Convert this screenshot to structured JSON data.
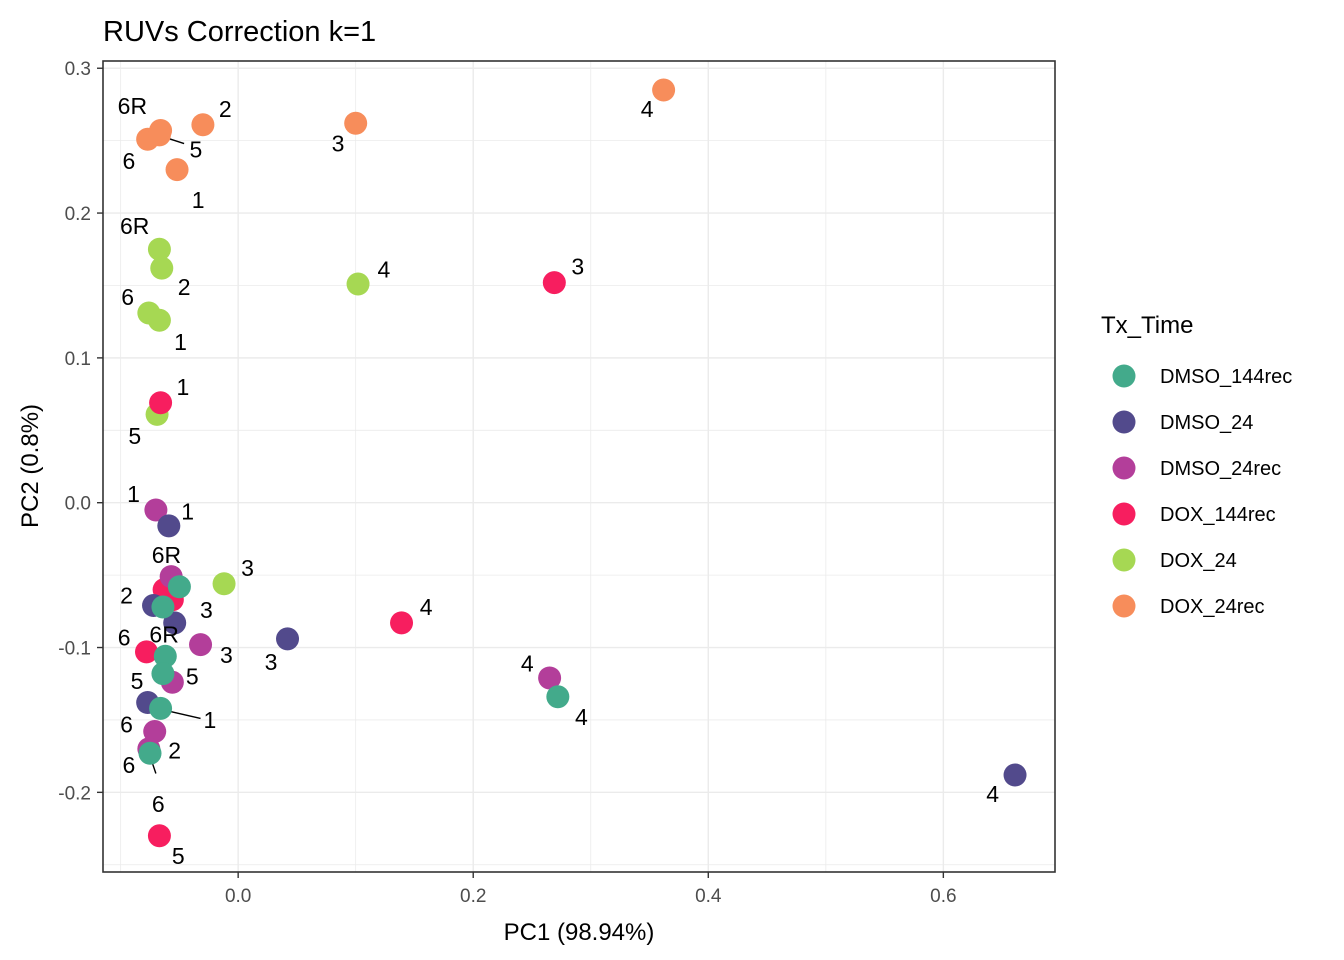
{
  "chart_data": {
    "type": "scatter",
    "title": "RUVs Correction k=1",
    "xlabel": "PC1 (98.94%)",
    "ylabel": "PC2 (0.8%)",
    "xlim": [
      -0.115,
      0.695
    ],
    "ylim": [
      -0.255,
      0.305
    ],
    "x_ticks": [
      0.0,
      0.2,
      0.4,
      0.6
    ],
    "x_tick_labels": [
      "0.0",
      "0.2",
      "0.4",
      "0.6"
    ],
    "y_ticks": [
      -0.2,
      -0.1,
      0.0,
      0.1,
      0.2,
      0.3
    ],
    "y_tick_labels": [
      "-0.2",
      "-0.1",
      "0.0",
      "0.1",
      "0.2",
      "0.3"
    ],
    "grid": true,
    "legend": {
      "title": "Tx_Time",
      "placement": "right",
      "entries": [
        {
          "name": "DMSO_144rec",
          "color": "#43AA8B"
        },
        {
          "name": "DMSO_24",
          "color": "#524A8C"
        },
        {
          "name": "DMSO_24rec",
          "color": "#B33E9A"
        },
        {
          "name": "DOX_144rec",
          "color": "#F71E5F"
        },
        {
          "name": "DOX_24",
          "color": "#A6D853"
        },
        {
          "name": "DOX_24rec",
          "color": "#F78D5B"
        }
      ]
    },
    "series": [
      {
        "name": "DOX_24rec",
        "points": [
          {
            "x": 0.362,
            "y": 0.285,
            "label": "4",
            "lx": 0.348,
            "ly": 0.272
          },
          {
            "x": 0.1,
            "y": 0.262,
            "label": "3",
            "lx": 0.085,
            "ly": 0.248
          },
          {
            "x": -0.03,
            "y": 0.261,
            "label": "2",
            "lx": -0.011,
            "ly": 0.272
          },
          {
            "x": -0.066,
            "y": 0.257,
            "label": "6R",
            "lx": -0.09,
            "ly": 0.274
          },
          {
            "x": -0.077,
            "y": 0.251,
            "label": "6",
            "lx": -0.093,
            "ly": 0.236
          },
          {
            "x": -0.067,
            "y": 0.254,
            "label": "5",
            "lx": -0.036,
            "ly": 0.244
          },
          {
            "x": -0.052,
            "y": 0.23,
            "label": "1",
            "lx": -0.034,
            "ly": 0.209
          }
        ]
      },
      {
        "name": "DOX_24",
        "points": [
          {
            "x": 0.102,
            "y": 0.151,
            "label": "4",
            "lx": 0.124,
            "ly": 0.161
          },
          {
            "x": -0.067,
            "y": 0.175,
            "label": "6R",
            "lx": -0.088,
            "ly": 0.191
          },
          {
            "x": -0.065,
            "y": 0.162,
            "label": "2",
            "lx": -0.046,
            "ly": 0.149
          },
          {
            "x": -0.076,
            "y": 0.131,
            "label": "6",
            "lx": -0.094,
            "ly": 0.142
          },
          {
            "x": -0.067,
            "y": 0.126,
            "label": "1",
            "lx": -0.049,
            "ly": 0.111
          },
          {
            "x": -0.069,
            "y": 0.061,
            "label": "5",
            "lx": -0.088,
            "ly": 0.046
          },
          {
            "x": -0.012,
            "y": -0.056,
            "label": "3",
            "lx": 0.008,
            "ly": -0.045
          }
        ]
      },
      {
        "name": "DOX_144rec",
        "points": [
          {
            "x": 0.269,
            "y": 0.152,
            "label": "3",
            "lx": 0.289,
            "ly": 0.163
          },
          {
            "x": -0.066,
            "y": 0.069,
            "label": "1",
            "lx": -0.047,
            "ly": 0.08
          },
          {
            "x": 0.139,
            "y": -0.083,
            "label": "4",
            "lx": 0.16,
            "ly": -0.072
          },
          {
            "x": -0.063,
            "y": -0.06,
            "label": "",
            "lx": 0,
            "ly": 0
          },
          {
            "x": -0.056,
            "y": -0.067,
            "label": "3",
            "lx": -0.027,
            "ly": -0.074
          },
          {
            "x": -0.078,
            "y": -0.103,
            "label": "6",
            "lx": -0.097,
            "ly": -0.093
          },
          {
            "x": -0.067,
            "y": -0.23,
            "label": "5",
            "lx": -0.051,
            "ly": -0.244
          }
        ]
      },
      {
        "name": "DMSO_24rec",
        "points": [
          {
            "x": -0.07,
            "y": -0.005,
            "label": "1",
            "lx": -0.089,
            "ly": 0.006
          },
          {
            "x": -0.057,
            "y": -0.051,
            "label": "6R",
            "lx": -0.061,
            "ly": -0.036
          },
          {
            "x": -0.032,
            "y": -0.098,
            "label": "3",
            "lx": -0.01,
            "ly": -0.105
          },
          {
            "x": -0.056,
            "y": -0.124,
            "label": "5",
            "lx": -0.039,
            "ly": -0.12
          },
          {
            "x": 0.265,
            "y": -0.121,
            "label": "4",
            "lx": 0.246,
            "ly": -0.111
          },
          {
            "x": -0.071,
            "y": -0.158,
            "label": "6",
            "lx": -0.095,
            "ly": -0.153
          },
          {
            "x": -0.076,
            "y": -0.17,
            "label": "2",
            "lx": -0.054,
            "ly": -0.171
          }
        ]
      },
      {
        "name": "DMSO_24",
        "points": [
          {
            "x": -0.059,
            "y": -0.016,
            "label": "1",
            "lx": -0.043,
            "ly": -0.006
          },
          {
            "x": -0.072,
            "y": -0.071,
            "label": "2",
            "lx": -0.095,
            "ly": -0.064
          },
          {
            "x": -0.054,
            "y": -0.083,
            "label": "",
            "lx": 0,
            "ly": 0
          },
          {
            "x": 0.042,
            "y": -0.094,
            "label": "3",
            "lx": 0.028,
            "ly": -0.11
          },
          {
            "x": -0.077,
            "y": -0.138,
            "label": "",
            "lx": 0,
            "ly": 0
          },
          {
            "x": 0.661,
            "y": -0.188,
            "label": "4",
            "lx": 0.642,
            "ly": -0.201
          }
        ]
      },
      {
        "name": "DMSO_144rec",
        "points": [
          {
            "x": -0.05,
            "y": -0.058,
            "label": "",
            "lx": 0,
            "ly": 0
          },
          {
            "x": -0.064,
            "y": -0.072,
            "label": "",
            "lx": 0,
            "ly": 0
          },
          {
            "x": -0.062,
            "y": -0.106,
            "label": "6R",
            "lx": -0.063,
            "ly": -0.091
          },
          {
            "x": -0.064,
            "y": -0.118,
            "label": "5",
            "lx": -0.086,
            "ly": -0.123
          },
          {
            "x": 0.272,
            "y": -0.134,
            "label": "4",
            "lx": 0.292,
            "ly": -0.148
          },
          {
            "x": -0.066,
            "y": -0.142,
            "label": "1",
            "lx": -0.024,
            "ly": -0.15
          },
          {
            "x": -0.075,
            "y": -0.173,
            "label": "6",
            "lx": -0.093,
            "ly": -0.181
          }
        ]
      }
    ],
    "connectors": [
      {
        "x1": -0.065,
        "y1": 0.253,
        "x2": -0.046,
        "y2": 0.248
      },
      {
        "x1": -0.064,
        "y1": -0.143,
        "x2": -0.032,
        "y2": -0.149
      },
      {
        "x1": -0.075,
        "y1": -0.175,
        "x2": -0.07,
        "y2": -0.187
      }
    ],
    "extra_labels": [
      {
        "text": "6",
        "lx": -0.068,
        "ly": -0.208
      }
    ]
  }
}
